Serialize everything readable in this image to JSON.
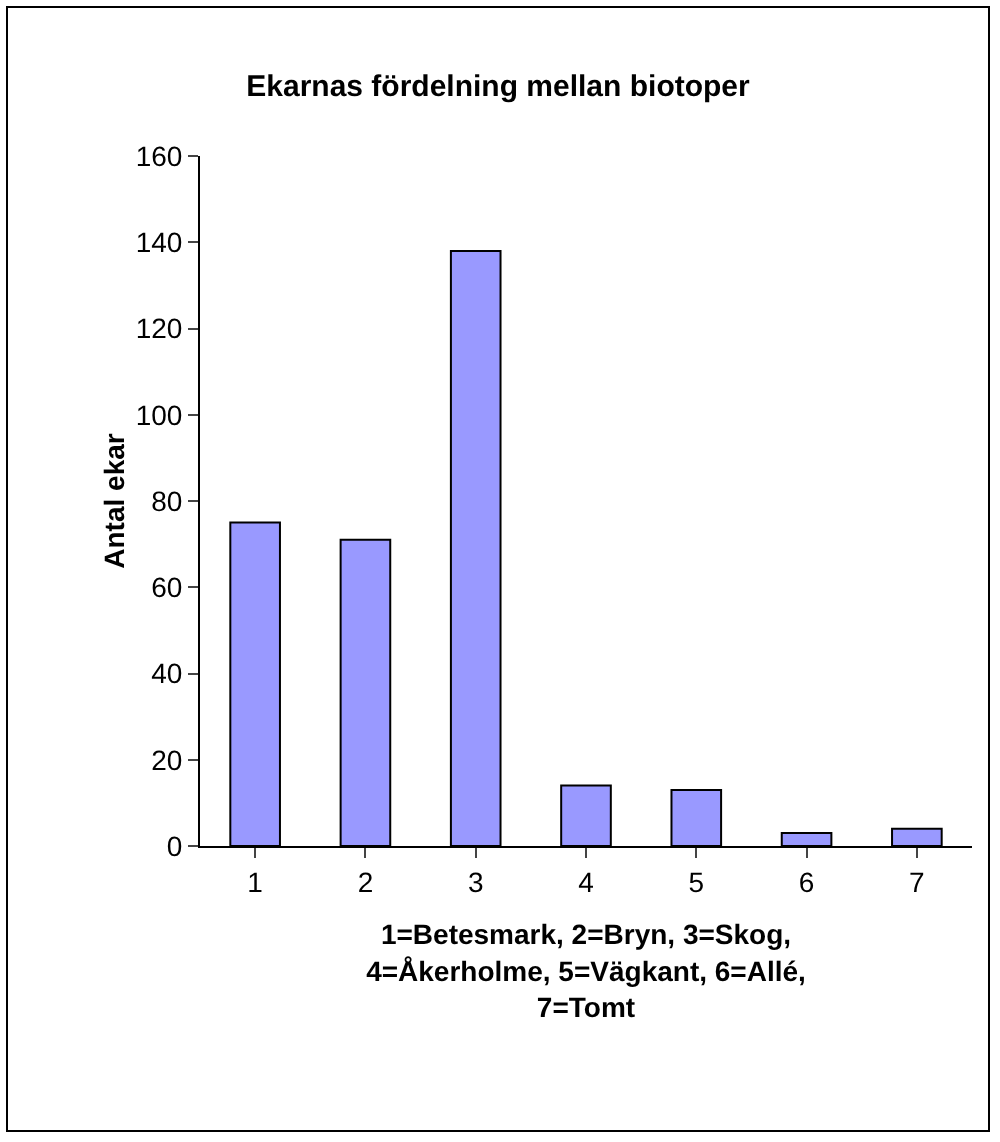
{
  "chart_data": {
    "type": "bar",
    "title": "Ekarnas fördelning mellan biotoper",
    "xlabel": "1=Betesmark, 2=Bryn, 3=Skog,\n4=Åkerholme, 5=Vägkant, 6=Allé,\n7=Tomt",
    "ylabel": "Antal ekar",
    "categories": [
      "1",
      "2",
      "3",
      "4",
      "5",
      "6",
      "7"
    ],
    "values": [
      75,
      71,
      138,
      14,
      13,
      3,
      4
    ],
    "color": "#9999ff",
    "ylim": [
      0,
      160
    ],
    "yticks": [
      0,
      20,
      40,
      60,
      80,
      100,
      120,
      140,
      160
    ],
    "grid": false,
    "legend": false
  }
}
